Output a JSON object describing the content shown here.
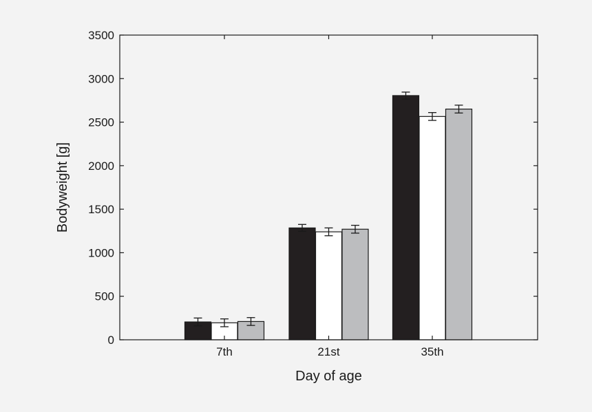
{
  "chart_data": {
    "type": "bar",
    "title": "",
    "xlabel": "Day of age",
    "ylabel": "Bodyweight [g]",
    "categories": [
      "7th",
      "21st",
      "35th"
    ],
    "ylim": [
      0,
      3500
    ],
    "yticks": [
      0,
      500,
      1000,
      1500,
      2000,
      2500,
      3000,
      3500
    ],
    "grid": false,
    "legend": "none",
    "series": [
      {
        "color": "#231f20",
        "values": [
          205,
          1285,
          2805
        ],
        "errors": [
          45,
          40,
          40
        ]
      },
      {
        "color": "#ffffff",
        "values": [
          195,
          1240,
          2565
        ],
        "errors": [
          45,
          45,
          45
        ]
      },
      {
        "color": "#bcbdbf",
        "values": [
          210,
          1270,
          2650
        ],
        "errors": [
          45,
          45,
          45
        ]
      }
    ]
  }
}
